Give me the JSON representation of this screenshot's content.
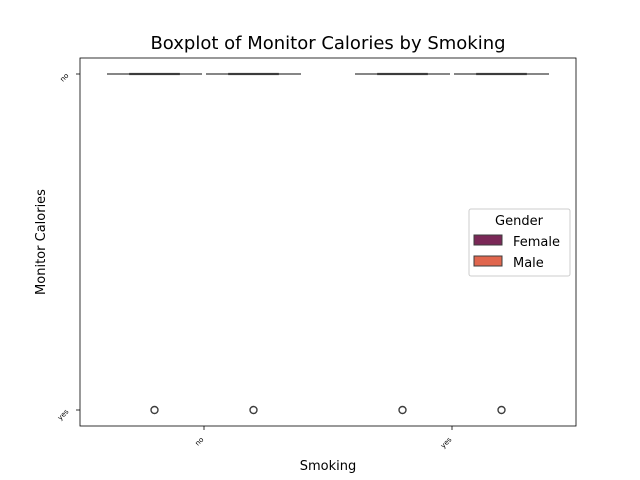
{
  "chart_data": {
    "type": "boxplot",
    "title": "Boxplot of Monitor Calories by Smoking",
    "xlabel": "Smoking",
    "ylabel": "Monitor Calories",
    "x_categories": [
      "no",
      "yes"
    ],
    "y_categories": [
      "no",
      "yes"
    ],
    "legend": {
      "title": "Gender",
      "position": "center-right",
      "entries": [
        {
          "label": "Female",
          "color": "#7a2857"
        },
        {
          "label": "Male",
          "color": "#e0664e"
        }
      ]
    },
    "series": [
      {
        "name": "Female",
        "color": "#7a2857",
        "boxes": [
          {
            "x": "no",
            "median": "no",
            "q1": "no",
            "q3": "no",
            "whisker_low": "no",
            "whisker_high": "no",
            "outliers": [
              "yes"
            ]
          },
          {
            "x": "yes",
            "median": "no",
            "q1": "no",
            "q3": "no",
            "whisker_low": "no",
            "whisker_high": "no",
            "outliers": [
              "yes"
            ]
          }
        ]
      },
      {
        "name": "Male",
        "color": "#e0664e",
        "boxes": [
          {
            "x": "no",
            "median": "no",
            "q1": "no",
            "q3": "no",
            "whisker_low": "no",
            "whisker_high": "no",
            "outliers": [
              "yes"
            ]
          },
          {
            "x": "yes",
            "median": "no",
            "q1": "no",
            "q3": "no",
            "whisker_low": "no",
            "whisker_high": "no",
            "outliers": [
              "yes"
            ]
          }
        ]
      }
    ]
  },
  "colors": {
    "axis": "#000000",
    "box_line": "#3d3d3d",
    "background": "#ffffff"
  }
}
